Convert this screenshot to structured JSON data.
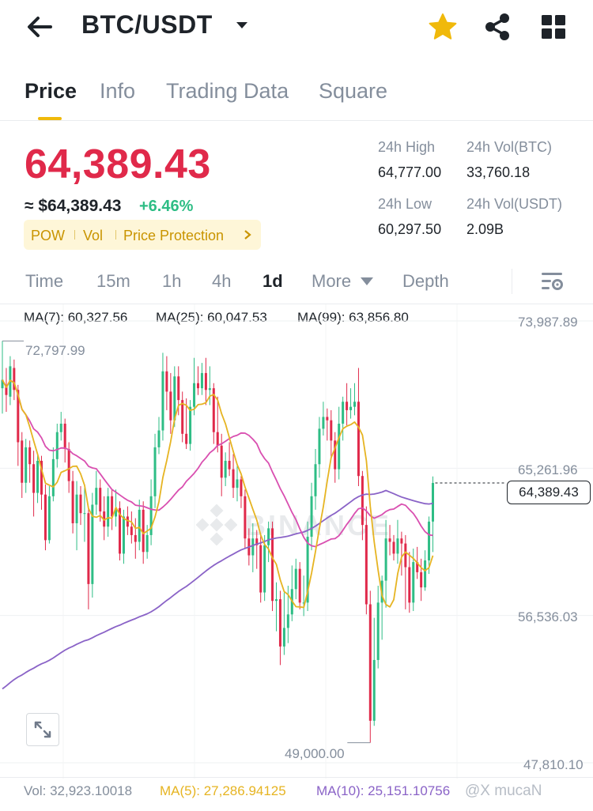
{
  "header": {
    "pair": "BTC/USDT",
    "back_icon": "back-arrow-icon",
    "caret_icon": "caret-down-icon",
    "favorite_icon": "star-icon",
    "share_icon": "share-icon",
    "menu_icon": "grid-icon",
    "star_color": "#f0b90b"
  },
  "tabs": [
    {
      "label": "Price",
      "active": true
    },
    {
      "label": "Info",
      "active": false
    },
    {
      "label": "Trading Data",
      "active": false
    },
    {
      "label": "Square",
      "active": false
    }
  ],
  "price": {
    "last": "64,389.43",
    "approx": "≈ $64,389.43",
    "change": "+6.46%",
    "down_color": "#e0294a",
    "up_color": "#2ebd85"
  },
  "tags": [
    "POW",
    "Vol",
    "Price Protection"
  ],
  "stats": {
    "high_label": "24h High",
    "high_value": "64,777.00",
    "low_label": "24h Low",
    "low_value": "60,297.50",
    "vol_btc_label": "24h Vol(BTC)",
    "vol_btc_value": "33,760.18",
    "vol_usdt_label": "24h Vol(USDT)",
    "vol_usdt_value": "2.09B"
  },
  "intervals": [
    {
      "label": "Time",
      "active": false
    },
    {
      "label": "15m",
      "active": false
    },
    {
      "label": "1h",
      "active": false
    },
    {
      "label": "4h",
      "active": false
    },
    {
      "label": "1d",
      "active": true
    },
    {
      "label": "More",
      "active": false
    },
    {
      "label": "Depth",
      "active": false
    }
  ],
  "ma_legend": {
    "ma7": "MA(7): 60,327.56",
    "ma25": "MA(25): 60,047.53",
    "ma99": "MA(99): 63,856.80",
    "ma7_color": "#e6b422",
    "ma25_color": "#d94fb0",
    "ma99_color": "#8a63c7"
  },
  "axis": {
    "p1": "73,987.89",
    "p2": "65,261.96",
    "p3": "56,536.03",
    "p4": "47,810.10",
    "high_marker": "72,797.99",
    "low_marker": "49,000.00",
    "current": "64,389.43"
  },
  "watermark": "BINANCE",
  "volume": {
    "vol": "Vol: 32,923.10018",
    "ma5": "MA(5): 27,286.94125",
    "ma10": "MA(10): 25,151.10756",
    "ma5_color": "#e6b422",
    "ma10_color": "#8a63c7"
  },
  "credit": "@X mucaN",
  "chart_data": {
    "type": "candlestick",
    "ylim": [
      47810.1,
      73987.89
    ],
    "y_ticks": [
      73987.89,
      65261.96,
      56536.03,
      47810.1
    ],
    "annotations": {
      "high": 72797.99,
      "low": 49000.0,
      "last": 64389.43
    },
    "candles": [
      [
        70000,
        70500,
        72798,
        68500
      ],
      [
        70200,
        69600,
        71200,
        68600
      ],
      [
        69500,
        71300,
        71900,
        69000
      ],
      [
        71200,
        69900,
        71700,
        69300
      ],
      [
        69900,
        66800,
        70200,
        65400
      ],
      [
        66900,
        64400,
        67400,
        63500
      ],
      [
        64400,
        66500,
        67000,
        63800
      ],
      [
        66500,
        65500,
        66900,
        64400
      ],
      [
        65500,
        63800,
        66300,
        62400
      ],
      [
        63800,
        65700,
        66100,
        63200
      ],
      [
        65700,
        63700,
        66000,
        62800
      ],
      [
        63700,
        61000,
        64300,
        60400
      ],
      [
        61000,
        63600,
        64200,
        60800
      ],
      [
        63600,
        65800,
        66500,
        63300
      ],
      [
        65800,
        67400,
        67900,
        65300
      ],
      [
        67400,
        67900,
        68600,
        66900
      ],
      [
        67900,
        66400,
        68200,
        65600
      ],
      [
        66400,
        64500,
        66800,
        63800
      ],
      [
        64500,
        62000,
        65100,
        61400
      ],
      [
        62000,
        63700,
        64500,
        60400
      ],
      [
        63700,
        62600,
        64200,
        61900
      ],
      [
        62600,
        62600,
        64100,
        60900
      ],
      [
        62600,
        58400,
        63000,
        56900
      ],
      [
        58400,
        63100,
        63800,
        57600
      ],
      [
        63100,
        64100,
        65100,
        62500
      ],
      [
        64100,
        62700,
        64600,
        62100
      ],
      [
        62700,
        61800,
        63600,
        61000
      ],
      [
        61800,
        63600,
        64100,
        61200
      ],
      [
        63600,
        62400,
        64000,
        61600
      ],
      [
        62400,
        62900,
        64000,
        61800
      ],
      [
        62900,
        60200,
        63300,
        59800
      ],
      [
        60200,
        62400,
        62800,
        59600
      ],
      [
        62400,
        61800,
        63000,
        61300
      ],
      [
        61800,
        61300,
        62700,
        60800
      ],
      [
        61300,
        60900,
        62300,
        59900
      ],
      [
        60900,
        62800,
        63400,
        60400
      ],
      [
        62800,
        60300,
        63300,
        59600
      ],
      [
        60300,
        61300,
        61900,
        59900
      ],
      [
        61300,
        63600,
        64600,
        60700
      ],
      [
        63600,
        66500,
        67300,
        62900
      ],
      [
        66500,
        67500,
        68300,
        66100
      ],
      [
        67500,
        71000,
        72100,
        66900
      ],
      [
        71000,
        69800,
        71900,
        68700
      ],
      [
        69800,
        68100,
        70900,
        67300
      ],
      [
        68100,
        70700,
        71300,
        67700
      ],
      [
        70700,
        69300,
        71300,
        68400
      ],
      [
        69300,
        67300,
        69800,
        66800
      ],
      [
        67300,
        66700,
        69400,
        66400
      ],
      [
        66700,
        68900,
        69300,
        66300
      ],
      [
        68900,
        70300,
        71800,
        68400
      ],
      [
        70300,
        70000,
        71300,
        69600
      ],
      [
        70000,
        70900,
        71500,
        69600
      ],
      [
        70900,
        69900,
        71800,
        69000
      ],
      [
        69900,
        70000,
        71300,
        69000
      ],
      [
        70000,
        67400,
        70300,
        66700
      ],
      [
        67400,
        66600,
        69500,
        66200
      ],
      [
        66600,
        64700,
        67300,
        63600
      ],
      [
        64700,
        65700,
        66200,
        64200
      ],
      [
        65700,
        65200,
        66800,
        64800
      ],
      [
        65200,
        64100,
        66100,
        63500
      ],
      [
        64100,
        64600,
        65400,
        63300
      ],
      [
        64600,
        63600,
        64800,
        62900
      ],
      [
        63600,
        61100,
        64000,
        60500
      ],
      [
        61100,
        60100,
        61700,
        59500
      ],
      [
        60100,
        61100,
        62000,
        59100
      ],
      [
        61100,
        60700,
        61600,
        59300
      ],
      [
        60700,
        57900,
        61400,
        57300
      ],
      [
        57900,
        60700,
        61300,
        57400
      ],
      [
        60700,
        61700,
        62100,
        59700
      ],
      [
        61700,
        57400,
        62100,
        56800
      ],
      [
        57400,
        57500,
        58500,
        55600
      ],
      [
        57500,
        54700,
        58000,
        53600
      ],
      [
        54700,
        55800,
        57900,
        54200
      ],
      [
        55800,
        56600,
        58300,
        54900
      ],
      [
        56600,
        58100,
        59500,
        56200
      ],
      [
        58100,
        59300,
        59900,
        57500
      ],
      [
        59300,
        57300,
        59700,
        56900
      ],
      [
        57300,
        57300,
        58900,
        56500
      ],
      [
        57300,
        61200,
        62100,
        56800
      ],
      [
        61200,
        63600,
        64400,
        60400
      ],
      [
        63600,
        65500,
        66400,
        62800
      ],
      [
        65500,
        67600,
        68300,
        64700
      ],
      [
        67600,
        68300,
        69200,
        67200
      ],
      [
        68300,
        68100,
        68800,
        66900
      ],
      [
        68100,
        66900,
        68700,
        65800
      ],
      [
        66900,
        65200,
        67400,
        64400
      ],
      [
        65200,
        67900,
        68900,
        64600
      ],
      [
        67900,
        69200,
        69500,
        66900
      ],
      [
        69200,
        68700,
        70300,
        67800
      ],
      [
        68700,
        68900,
        70000,
        68200
      ],
      [
        68900,
        69200,
        70300,
        68400
      ],
      [
        69200,
        64800,
        71200,
        64200
      ],
      [
        64800,
        61900,
        65100,
        61000
      ],
      [
        61900,
        57200,
        63000,
        56600
      ],
      [
        57200,
        50300,
        58000,
        49000
      ],
      [
        50300,
        53900,
        56400,
        50000
      ],
      [
        53900,
        57300,
        58300,
        53400
      ],
      [
        57300,
        58600,
        58900,
        55100
      ],
      [
        58600,
        61100,
        62200,
        57000
      ],
      [
        61100,
        60900,
        61900,
        60100
      ],
      [
        60900,
        60200,
        61300,
        59800
      ],
      [
        60200,
        61100,
        62200,
        59600
      ],
      [
        61100,
        60800,
        61500,
        58900
      ],
      [
        60800,
        59400,
        61300,
        56900
      ],
      [
        59400,
        57300,
        60300,
        56700
      ],
      [
        57300,
        59700,
        60500,
        56800
      ],
      [
        59700,
        59100,
        60600,
        58700
      ],
      [
        59100,
        58200,
        59900,
        57400
      ],
      [
        58200,
        59800,
        60400,
        58000
      ],
      [
        59800,
        62100,
        62400,
        59000
      ],
      [
        62100,
        64389.43,
        64777,
        60297.5
      ]
    ]
  }
}
